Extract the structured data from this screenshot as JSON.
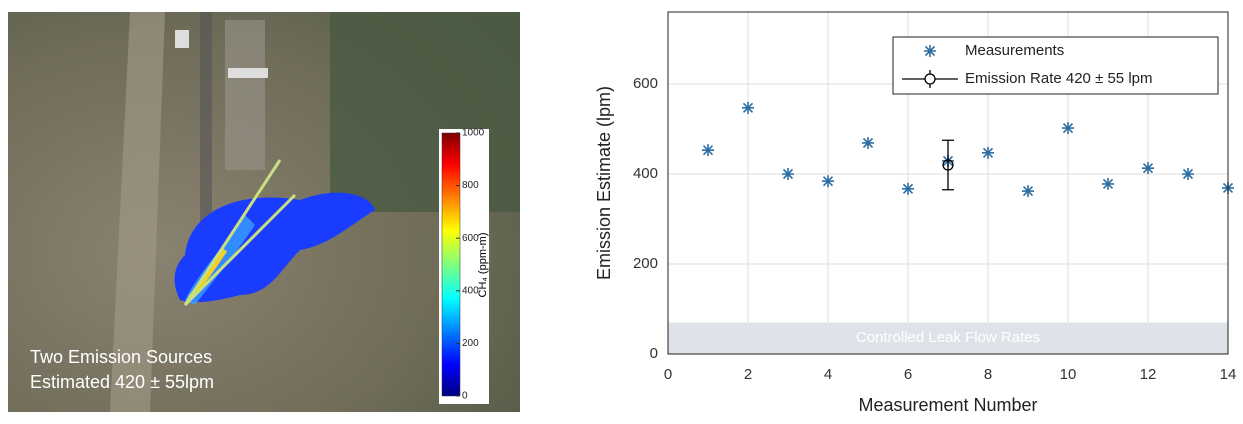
{
  "image_panel": {
    "caption": [
      "Two Emission Sources",
      "Estimated 420 ± 55lpm"
    ],
    "colorbar": {
      "label": "CH₄ (ppm-m)",
      "lim": [
        0,
        1000
      ],
      "ticks": [
        0,
        200,
        400,
        600,
        800,
        1000
      ]
    }
  },
  "chart_data": {
    "type": "scatter",
    "x_label": "Measurement Number",
    "y_label": "Emission Estimate (lpm)",
    "xlim": [
      0,
      14
    ],
    "ylim": [
      0,
      760
    ],
    "xticks": [
      0,
      2,
      4,
      6,
      8,
      10,
      12,
      14
    ],
    "yticks": [
      0,
      200,
      400,
      600
    ],
    "grid": true,
    "legend": "upper right",
    "band": {
      "label": "Controlled Leak Flow Rates",
      "range": [
        0,
        70
      ],
      "color": "#dde3e8"
    },
    "series": [
      {
        "name": "Measurements",
        "color": "#2f6ea3",
        "marker": "star",
        "x": [
          1,
          2,
          3,
          4,
          5,
          6,
          7,
          8,
          9,
          10,
          11,
          12,
          13,
          14
        ],
        "values": [
          453,
          547,
          400,
          384,
          469,
          367,
          429,
          447,
          362,
          502,
          378,
          413,
          400,
          369
        ]
      },
      {
        "name": "Emission Rate 420 ± 55 lpm",
        "color": "#000000",
        "marker": "circle",
        "x": [
          7
        ],
        "values": [
          420
        ],
        "errors": [
          55
        ]
      }
    ]
  }
}
